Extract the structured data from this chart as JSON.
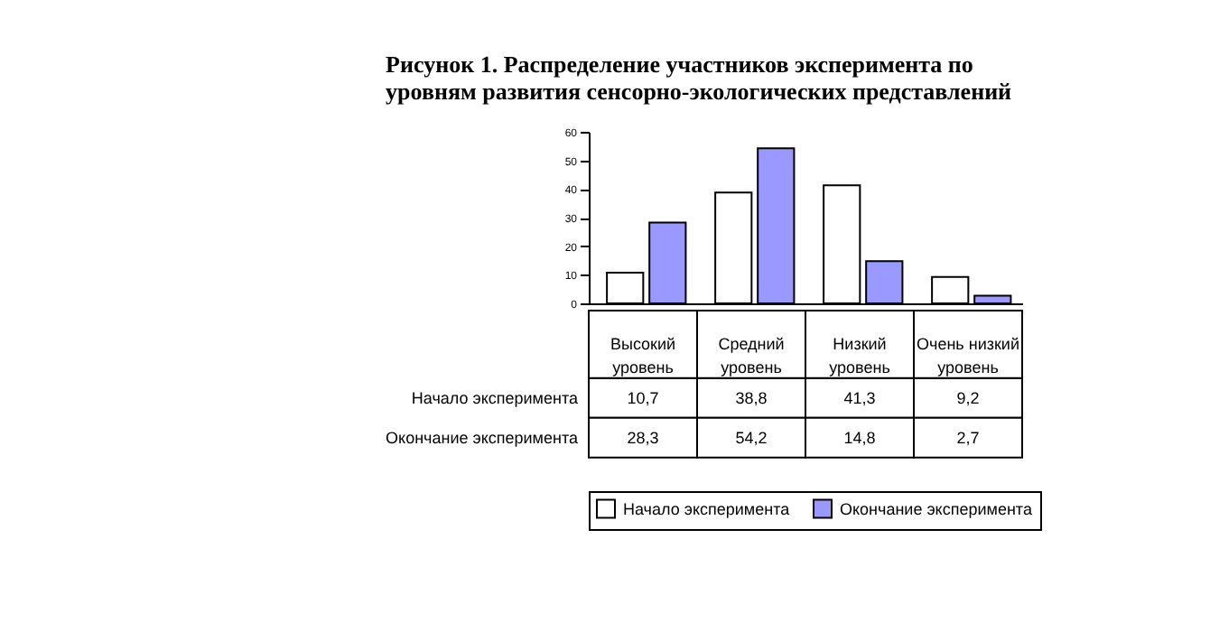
{
  "chart_data": {
    "type": "bar",
    "title": "Рисунок 1. Распределение участников эксперимента по\nуровням развития сенсорно-экологических представлений",
    "categories": [
      "Высокий уровень",
      "Средний уровень",
      "Низкий уровень",
      "Очень низкий уровень"
    ],
    "series": [
      {
        "name": "Начало эксперимента",
        "color": "#ffffff",
        "values": [
          10.7,
          38.8,
          41.3,
          9.2
        ],
        "value_labels": [
          "10,7",
          "38,8",
          "41,3",
          "9,2"
        ]
      },
      {
        "name": "Окончание эксперимента",
        "color": "#9999ff",
        "values": [
          28.3,
          54.2,
          14.8,
          2.7
        ],
        "value_labels": [
          "28,3",
          "54,2",
          "14,8",
          "2,7"
        ]
      }
    ],
    "ylim": [
      0,
      60
    ],
    "yticks": [
      0,
      10,
      20,
      30,
      40,
      50,
      60
    ],
    "grid": false,
    "legend": "bottom"
  }
}
